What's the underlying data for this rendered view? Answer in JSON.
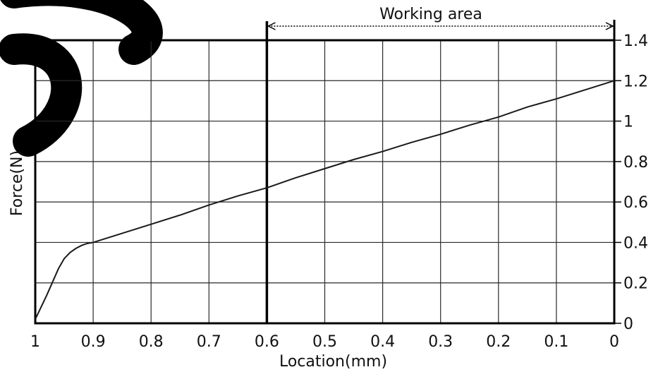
{
  "chart_data": {
    "type": "line",
    "title": "",
    "xlabel": "Location(mm)",
    "ylabel": "Force(N)",
    "xlim": [
      1,
      0
    ],
    "ylim": [
      0,
      1.4
    ],
    "x_reversed": true,
    "y_axis_side": "right",
    "grid": true,
    "x_ticks": [
      1,
      0.9,
      0.8,
      0.7,
      0.6,
      0.5,
      0.4,
      0.3,
      0.2,
      0.1,
      0
    ],
    "x_tick_labels": [
      "1",
      "0.9",
      "0.8",
      "0.7",
      "0.6",
      "0.5",
      "0.4",
      "0.3",
      "0.2",
      "0.1",
      "0"
    ],
    "y_ticks": [
      0,
      0.2,
      0.4,
      0.6,
      0.8,
      1,
      1.2,
      1.4
    ],
    "y_tick_labels": [
      "0",
      "0.2",
      "0.4",
      "0.6",
      "0.8",
      "1",
      "1.2",
      "1.4"
    ],
    "series": [
      {
        "x": [
          1.0,
          0.98,
          0.96,
          0.95,
          0.94,
          0.93,
          0.92,
          0.91,
          0.9,
          0.85,
          0.8,
          0.75,
          0.7,
          0.65,
          0.6,
          0.55,
          0.5,
          0.45,
          0.4,
          0.35,
          0.3,
          0.25,
          0.2,
          0.15,
          0.1,
          0.05,
          0.0
        ],
        "y": [
          0.02,
          0.14,
          0.27,
          0.32,
          0.35,
          0.37,
          0.385,
          0.395,
          0.4,
          0.445,
          0.49,
          0.535,
          0.585,
          0.63,
          0.67,
          0.72,
          0.765,
          0.81,
          0.85,
          0.895,
          0.935,
          0.98,
          1.02,
          1.07,
          1.11,
          1.155,
          1.2
        ]
      }
    ],
    "marker_line_x": 0.6,
    "annotation": {
      "label": "Working area",
      "from_x": 0.6,
      "to_x": 0.0
    }
  },
  "colors": {
    "line": "#1a1a1a",
    "grid": "#2a2a2a",
    "frame": "#000000",
    "watermark": "#000000"
  }
}
